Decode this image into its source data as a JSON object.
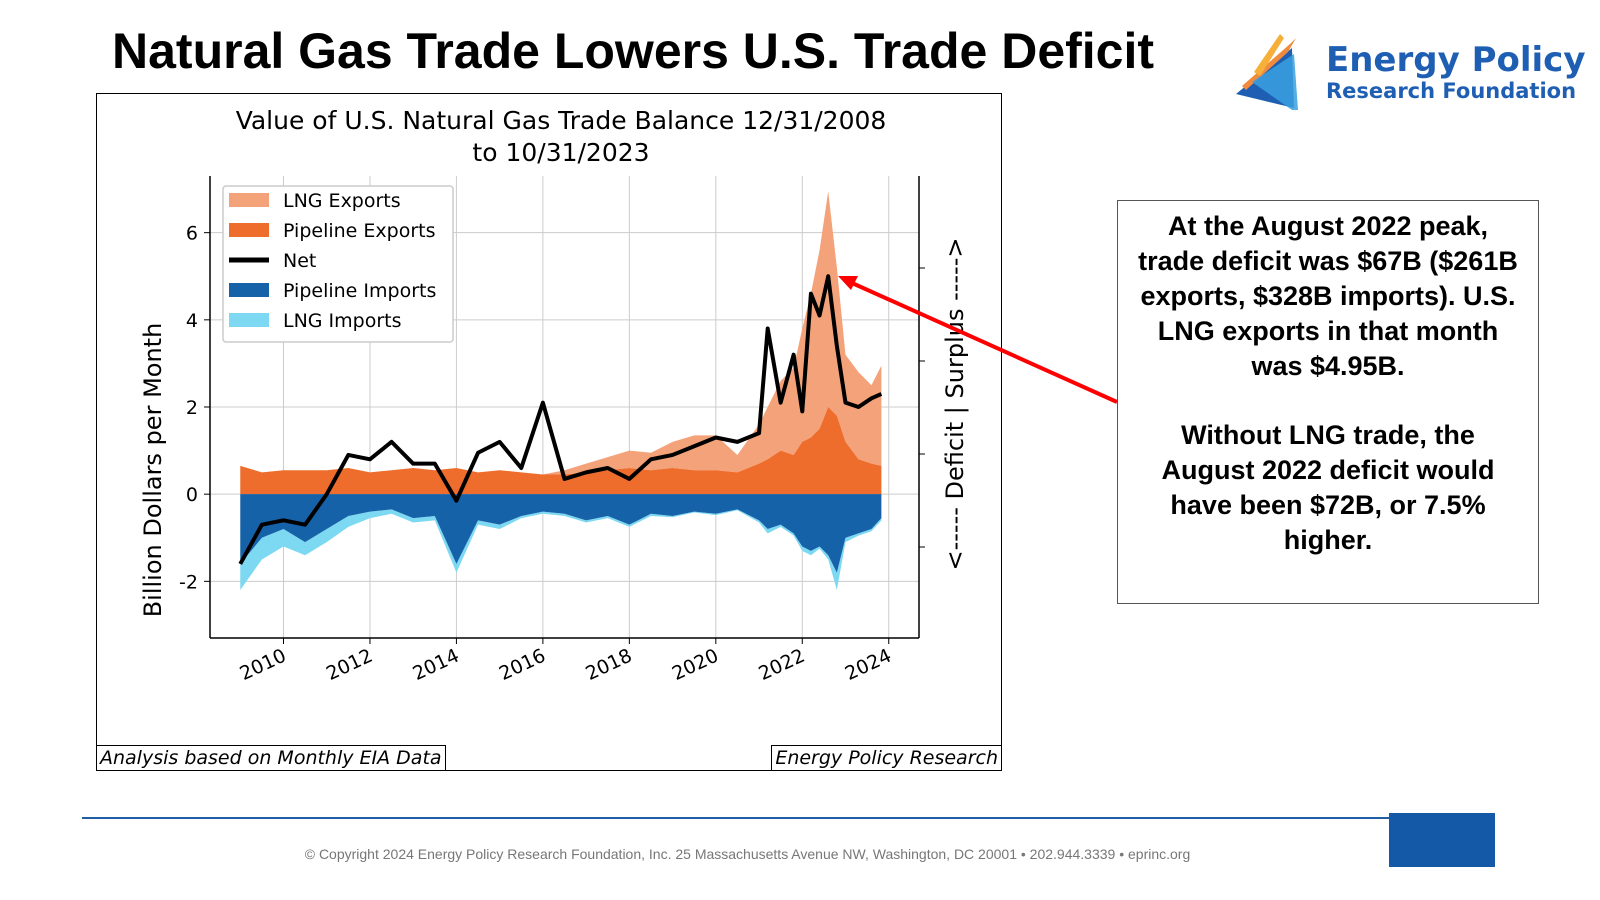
{
  "slide": {
    "title": "Natural Gas Trade Lowers U.S. Trade Deficit",
    "logo": {
      "line1": "Energy Policy",
      "line2": "Research Foundation"
    },
    "callout": {
      "paragraph1": "At the August 2022 peak, trade deficit was $67B ($261B exports, $328B imports). U.S. LNG exports in that month was $4.95B.",
      "paragraph2": "Without LNG trade, the August 2022 deficit would have been $72B, or 7.5% higher."
    },
    "footer": "© Copyright 2024 Energy Policy Research Foundation, Inc. 25 Massachusetts Avenue NW, Washington, DC 20001 • 202.944.3339 • eprinc.org",
    "note_left": "Analysis based on Monthly EIA Data",
    "note_right": "Energy Policy Research",
    "colors": {
      "brand_blue": "#1f5fb3",
      "footer_blue": "#1359a8",
      "arrow": "#ff0000"
    }
  },
  "chart_data": {
    "type": "area",
    "title": [
      "Value of U.S. Natural Gas Trade Balance 12/31/2008",
      "to 10/31/2023"
    ],
    "ylabel": "Billion Dollars per Month",
    "ylabel_right": "<----- Deficit | Surplus ----->",
    "ylim": [
      -3.3,
      7.3
    ],
    "xlim": [
      2008.3,
      2024.7
    ],
    "yticks": [
      -2,
      0,
      2,
      4,
      6
    ],
    "ytick_labels": [
      "-2",
      "0",
      "2",
      "4",
      "6"
    ],
    "xticks": [
      2010,
      2012,
      2014,
      2016,
      2018,
      2020,
      2022,
      2024
    ],
    "xtick_labels": [
      "2010",
      "2012",
      "2014",
      "2016",
      "2018",
      "2020",
      "2022",
      "2024"
    ],
    "grid": true,
    "legend": {
      "position": "top-left",
      "entries": [
        "LNG Exports",
        "Pipeline Exports",
        "Net",
        "Pipeline Imports",
        "LNG Imports"
      ]
    },
    "colors": {
      "lng_exports": "#f4a27a",
      "pipeline_exports": "#ee6d2c",
      "net": "#000000",
      "pipeline_imports": "#1662a8",
      "lng_imports": "#7dd8f2"
    },
    "x": [
      2009.0,
      2009.5,
      2010.0,
      2010.5,
      2011.0,
      2011.5,
      2012.0,
      2012.5,
      2013.0,
      2013.5,
      2014.0,
      2014.5,
      2015.0,
      2015.5,
      2016.0,
      2016.5,
      2017.0,
      2017.5,
      2018.0,
      2018.5,
      2019.0,
      2019.5,
      2020.0,
      2020.5,
      2021.0,
      2021.2,
      2021.5,
      2021.8,
      2022.0,
      2022.2,
      2022.4,
      2022.6,
      2022.8,
      2023.0,
      2023.3,
      2023.6,
      2023.83
    ],
    "series": [
      {
        "name": "Pipeline Exports",
        "values": [
          0.65,
          0.5,
          0.55,
          0.55,
          0.55,
          0.6,
          0.5,
          0.55,
          0.6,
          0.55,
          0.6,
          0.5,
          0.55,
          0.5,
          0.45,
          0.45,
          0.5,
          0.55,
          0.6,
          0.55,
          0.6,
          0.55,
          0.55,
          0.5,
          0.7,
          0.8,
          1.0,
          0.9,
          1.2,
          1.3,
          1.5,
          2.0,
          1.8,
          1.2,
          0.8,
          0.7,
          0.65
        ]
      },
      {
        "name": "LNG Exports",
        "values": [
          0.0,
          0.0,
          0.0,
          0.0,
          0.0,
          0.0,
          0.0,
          0.0,
          0.0,
          0.0,
          0.0,
          0.0,
          0.0,
          0.0,
          0.0,
          0.1,
          0.2,
          0.3,
          0.4,
          0.4,
          0.6,
          0.8,
          0.8,
          0.4,
          0.9,
          1.2,
          1.6,
          2.0,
          2.6,
          3.3,
          4.1,
          4.95,
          3.4,
          2.0,
          2.0,
          1.8,
          2.3
        ]
      },
      {
        "name": "Pipeline Imports",
        "values": [
          -1.6,
          -1.0,
          -0.8,
          -1.1,
          -0.8,
          -0.5,
          -0.4,
          -0.35,
          -0.55,
          -0.5,
          -1.6,
          -0.6,
          -0.7,
          -0.5,
          -0.4,
          -0.45,
          -0.6,
          -0.5,
          -0.7,
          -0.45,
          -0.5,
          -0.4,
          -0.45,
          -0.35,
          -0.6,
          -0.8,
          -0.7,
          -0.9,
          -1.2,
          -1.3,
          -1.2,
          -1.4,
          -1.8,
          -1.0,
          -0.9,
          -0.8,
          -0.55
        ]
      },
      {
        "name": "LNG Imports",
        "values": [
          -0.6,
          -0.5,
          -0.4,
          -0.3,
          -0.3,
          -0.25,
          -0.15,
          -0.1,
          -0.1,
          -0.1,
          -0.2,
          -0.1,
          -0.1,
          -0.05,
          -0.05,
          -0.05,
          -0.05,
          -0.05,
          -0.05,
          -0.05,
          -0.03,
          -0.02,
          -0.03,
          -0.02,
          -0.05,
          -0.1,
          -0.05,
          -0.05,
          -0.1,
          -0.1,
          -0.05,
          -0.1,
          -0.4,
          -0.1,
          -0.05,
          -0.05,
          -0.05
        ]
      },
      {
        "name": "Net",
        "values": [
          -1.6,
          -0.7,
          -0.6,
          -0.7,
          0.0,
          0.9,
          0.8,
          1.2,
          0.7,
          0.7,
          -0.15,
          0.95,
          1.2,
          0.6,
          2.1,
          0.35,
          0.5,
          0.6,
          0.35,
          0.8,
          0.9,
          1.1,
          1.3,
          1.2,
          1.4,
          3.8,
          2.1,
          3.2,
          1.9,
          4.6,
          4.1,
          5.0,
          3.4,
          2.1,
          2.0,
          2.2,
          2.3
        ]
      }
    ]
  }
}
